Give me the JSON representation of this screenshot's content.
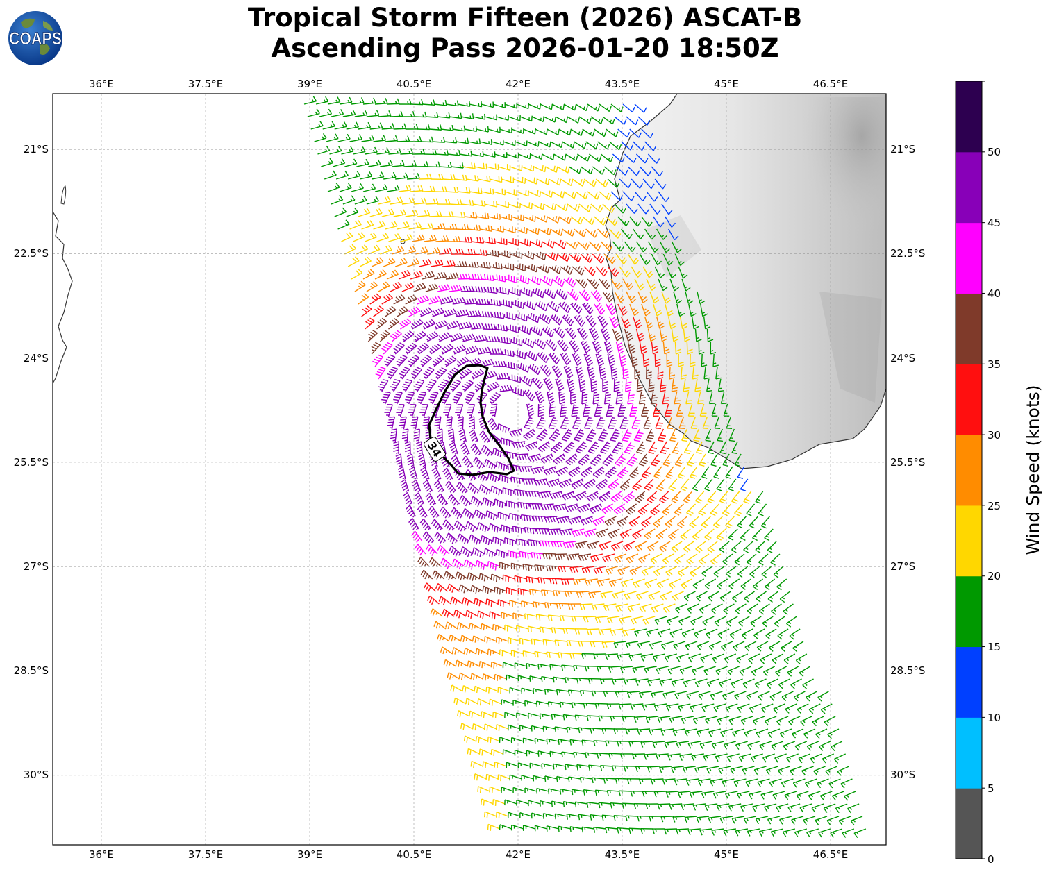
{
  "title": {
    "line1": "Tropical Storm Fifteen (2026) ASCAT-B",
    "line2": "Ascending Pass 2026-01-20 18:50Z"
  },
  "logo": {
    "text": "COAPS",
    "icon": "globe-icon"
  },
  "map": {
    "lon_ticks": [
      "36°E",
      "37.5°E",
      "39°E",
      "40.5°E",
      "42°E",
      "43.5°E",
      "45°E",
      "46.5°E"
    ],
    "lat_ticks": [
      "21°S",
      "22.5°S",
      "24°S",
      "25.5°S",
      "27°S",
      "28.5°S",
      "30°S"
    ],
    "lon_range": [
      35.3,
      47.3
    ],
    "lat_range": [
      -20.2,
      -31.0
    ],
    "contour_label": "34",
    "storm_center": {
      "lon": 41.9,
      "lat": -24.8
    }
  },
  "colorbar": {
    "label": "Wind Speed (knots)",
    "ticks": [
      "0",
      "5",
      "10",
      "15",
      "20",
      "25",
      "30",
      "35",
      "40",
      "45",
      "50"
    ],
    "colors": [
      "#555555",
      "#00bfff",
      "#0040ff",
      "#009900",
      "#ffd700",
      "#ff8c00",
      "#ff0f0f",
      "#7f3a2a",
      "#ff00ff",
      "#8800b8",
      "#2d0050"
    ]
  }
}
